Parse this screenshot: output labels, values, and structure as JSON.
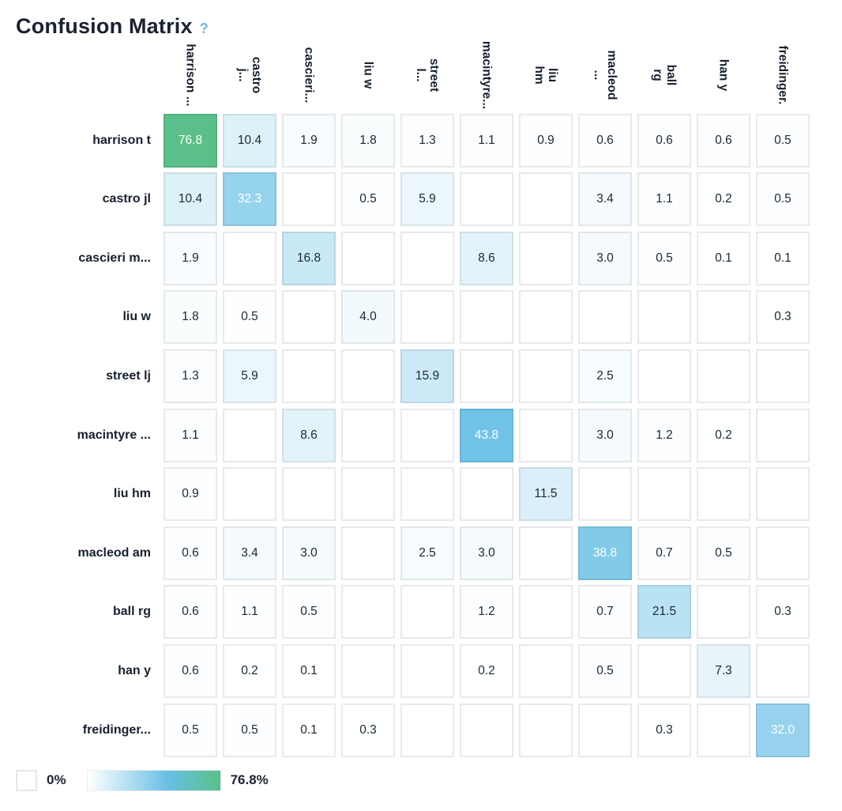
{
  "header": {
    "title": "Confusion Matrix",
    "help_icon": "?"
  },
  "chart_data": {
    "type": "heatmap",
    "title": "Confusion Matrix",
    "max_value": 76.8,
    "row_labels": [
      "harrison t",
      "castro jl",
      "cascieri m...",
      "liu w",
      "street lj",
      "macintyre ...",
      "liu hm",
      "macleod am",
      "ball rg",
      "han y",
      "freidinger..."
    ],
    "col_labels": [
      [
        "harrison ..."
      ],
      [
        "castro",
        "j..."
      ],
      [
        "cascieri..."
      ],
      [
        "liu w"
      ],
      [
        "street",
        "l..."
      ],
      [
        "macintyre..."
      ],
      [
        "liu",
        "hm"
      ],
      [
        "macleod",
        "..."
      ],
      [
        "ball",
        "rg"
      ],
      [
        "han y"
      ],
      [
        "freidinger."
      ]
    ],
    "matrix": [
      [
        76.8,
        10.4,
        1.9,
        1.8,
        1.3,
        1.1,
        0.9,
        0.6,
        0.6,
        0.6,
        0.5
      ],
      [
        10.4,
        32.3,
        null,
        0.5,
        5.9,
        null,
        null,
        3.4,
        1.1,
        0.2,
        0.5
      ],
      [
        1.9,
        null,
        16.8,
        null,
        null,
        8.6,
        null,
        3.0,
        0.5,
        0.1,
        0.1
      ],
      [
        1.8,
        0.5,
        null,
        4.0,
        null,
        null,
        null,
        null,
        null,
        null,
        0.3
      ],
      [
        1.3,
        5.9,
        null,
        null,
        15.9,
        null,
        null,
        2.5,
        null,
        null,
        null
      ],
      [
        1.1,
        null,
        8.6,
        null,
        null,
        43.8,
        null,
        3.0,
        1.2,
        0.2,
        null
      ],
      [
        0.9,
        null,
        null,
        null,
        null,
        null,
        11.5,
        null,
        null,
        null,
        null
      ],
      [
        0.6,
        3.4,
        3.0,
        null,
        2.5,
        3.0,
        null,
        38.8,
        0.7,
        0.5,
        null
      ],
      [
        0.6,
        1.1,
        0.5,
        null,
        null,
        1.2,
        null,
        0.7,
        21.5,
        null,
        0.3
      ],
      [
        0.6,
        0.2,
        0.1,
        null,
        null,
        0.2,
        null,
        0.5,
        null,
        7.3,
        null
      ],
      [
        0.5,
        0.5,
        0.1,
        0.3,
        null,
        null,
        null,
        null,
        0.3,
        null,
        32.0
      ]
    ],
    "colors": {
      "scale_min": "#ffffff",
      "scale_mid": "#69c0e6",
      "scale_max": "#5abf88",
      "mid_position": 0.6,
      "label_dark": "#1c2733",
      "label_light": "#ffffff"
    },
    "legend": {
      "min_label": "0%",
      "max_label": "76.8%"
    }
  }
}
